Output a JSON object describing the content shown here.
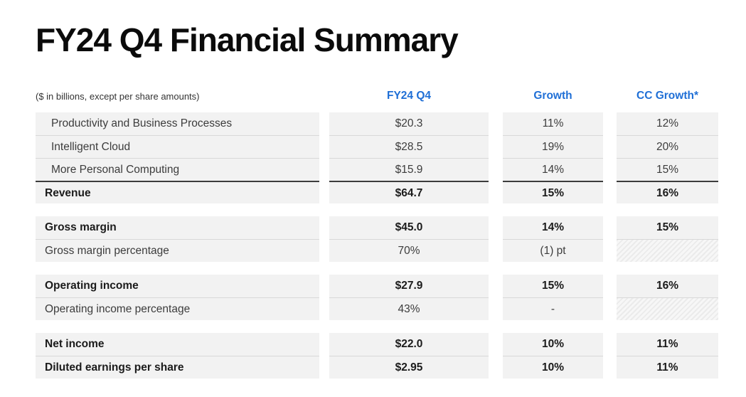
{
  "slide": {
    "title": "FY24 Q4 Financial Summary",
    "note": "($ in billions, except per share amounts)"
  },
  "colors": {
    "accent_blue": "#1F6FD6",
    "row_background": "#F2F2F2",
    "separator_line": "#D8D8D8",
    "total_top_border": "#3C3C3C",
    "text_regular": "#3C3C3C",
    "text_bold": "#1B1B1B"
  },
  "table": {
    "columns": [
      "FY24 Q4",
      "Growth",
      "CC Growth*"
    ],
    "groups": [
      {
        "rows": [
          {
            "label": "Productivity and Business Processes",
            "value": "$20.3",
            "growth": "11%",
            "cc_growth": "12%",
            "bold": false,
            "indent": true,
            "total": false,
            "hatched": false
          },
          {
            "label": "Intelligent Cloud",
            "value": "$28.5",
            "growth": "19%",
            "cc_growth": "20%",
            "bold": false,
            "indent": true,
            "total": false,
            "hatched": false
          },
          {
            "label": "More Personal Computing",
            "value": "$15.9",
            "growth": "14%",
            "cc_growth": "15%",
            "bold": false,
            "indent": true,
            "total": false,
            "hatched": false
          },
          {
            "label": "Revenue",
            "value": "$64.7",
            "growth": "15%",
            "cc_growth": "16%",
            "bold": true,
            "indent": false,
            "total": true,
            "hatched": false
          }
        ]
      },
      {
        "rows": [
          {
            "label": "Gross margin",
            "value": "$45.0",
            "growth": "14%",
            "cc_growth": "15%",
            "bold": true,
            "indent": false,
            "total": false,
            "hatched": false
          },
          {
            "label": "Gross margin percentage",
            "value": "70%",
            "growth": "(1) pt",
            "cc_growth": "",
            "bold": false,
            "indent": false,
            "total": false,
            "hatched": true
          }
        ]
      },
      {
        "rows": [
          {
            "label": "Operating income",
            "value": "$27.9",
            "growth": "15%",
            "cc_growth": "16%",
            "bold": true,
            "indent": false,
            "total": false,
            "hatched": false
          },
          {
            "label": "Operating income percentage",
            "value": "43%",
            "growth": "-",
            "cc_growth": "",
            "bold": false,
            "indent": false,
            "total": false,
            "hatched": true
          }
        ]
      },
      {
        "rows": [
          {
            "label": "Net income",
            "value": "$22.0",
            "growth": "10%",
            "cc_growth": "11%",
            "bold": true,
            "indent": false,
            "total": false,
            "hatched": false
          },
          {
            "label": "Diluted earnings per share",
            "value": "$2.95",
            "growth": "10%",
            "cc_growth": "11%",
            "bold": true,
            "indent": false,
            "total": false,
            "hatched": false
          }
        ]
      }
    ]
  }
}
